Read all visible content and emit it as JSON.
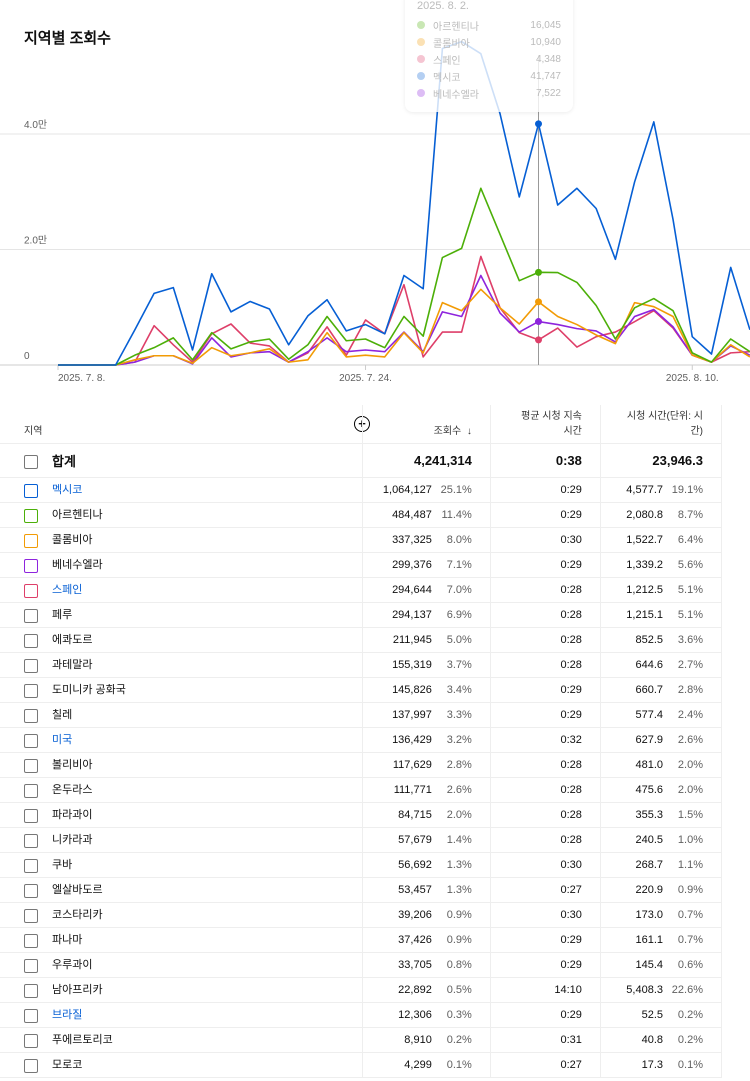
{
  "chart_data": {
    "type": "line",
    "title": "지역별 조회수",
    "x": [
      "2025-07-08",
      "2025-07-09",
      "2025-07-10",
      "2025-07-11",
      "2025-07-12",
      "2025-07-13",
      "2025-07-14",
      "2025-07-15",
      "2025-07-16",
      "2025-07-17",
      "2025-07-18",
      "2025-07-19",
      "2025-07-20",
      "2025-07-21",
      "2025-07-22",
      "2025-07-23",
      "2025-07-24",
      "2025-07-25",
      "2025-07-26",
      "2025-07-27",
      "2025-07-28",
      "2025-07-29",
      "2025-07-30",
      "2025-07-31",
      "2025-08-01",
      "2025-08-02",
      "2025-08-03",
      "2025-08-04",
      "2025-08-05",
      "2025-08-06",
      "2025-08-07",
      "2025-08-08",
      "2025-08-09",
      "2025-08-10",
      "2025-08-11",
      "2025-08-12",
      "2025-08-13"
    ],
    "x_tick_labels": [
      {
        "x": "2025-07-08",
        "label": "2025. 7. 8."
      },
      {
        "x": "2025-07-24",
        "label": "2025. 7. 24."
      },
      {
        "x": "2025-08-10",
        "label": "2025. 8. 10."
      }
    ],
    "y_ticks": [
      {
        "value": 0,
        "label": "0"
      },
      {
        "value": 20000,
        "label": "2.0만"
      },
      {
        "value": 40000,
        "label": "4.0만"
      }
    ],
    "ylim": [
      0,
      63500
    ],
    "grid": true,
    "series": [
      {
        "name": "멕시코",
        "color": "#065fd4",
        "values": [
          0,
          0,
          0,
          0,
          6100,
          12400,
          13400,
          2600,
          15800,
          9200,
          11000,
          9700,
          3500,
          8500,
          11300,
          5900,
          7000,
          5400,
          15500,
          13200,
          54800,
          56000,
          53900,
          43500,
          29100,
          41747,
          27700,
          30600,
          27100,
          18300,
          31700,
          42100,
          25200,
          4900,
          1900,
          16900,
          6100
        ]
      },
      {
        "name": "아르헨티나",
        "color": "#4caf08",
        "values": [
          0,
          0,
          0,
          0,
          1700,
          3000,
          4700,
          900,
          5600,
          2800,
          4000,
          4500,
          1000,
          3500,
          8400,
          4200,
          4500,
          3000,
          8400,
          5000,
          18600,
          20200,
          30600,
          22600,
          14600,
          16045,
          16000,
          14300,
          10300,
          4500,
          9900,
          11500,
          9400,
          2100,
          500,
          4500,
          2300
        ]
      },
      {
        "name": "콜롬비아",
        "color": "#f29b05",
        "values": [
          0,
          0,
          0,
          0,
          900,
          1600,
          1600,
          300,
          3000,
          1600,
          2100,
          2800,
          500,
          900,
          5600,
          1400,
          1700,
          1400,
          5600,
          2100,
          10800,
          9400,
          13100,
          9900,
          7100,
          10940,
          8400,
          7000,
          5200,
          3700,
          10800,
          10100,
          8400,
          1700,
          500,
          3500,
          1400
        ]
      },
      {
        "name": "베네수엘라",
        "color": "#8e24dd",
        "values": [
          0,
          0,
          0,
          0,
          500,
          1600,
          1600,
          200,
          4700,
          1400,
          2100,
          2300,
          500,
          2300,
          4700,
          2300,
          2600,
          2300,
          5700,
          2300,
          9200,
          8400,
          15500,
          9000,
          5700,
          7522,
          7000,
          6300,
          5900,
          4000,
          8400,
          9600,
          6600,
          1700,
          500,
          3300,
          1700
        ]
      },
      {
        "name": "스페인",
        "color": "#de3f69",
        "values": [
          0,
          0,
          0,
          0,
          500,
          6800,
          3500,
          500,
          5400,
          7100,
          3800,
          3300,
          500,
          2100,
          6600,
          1700,
          7800,
          5400,
          13900,
          1400,
          5700,
          5700,
          18800,
          9900,
          5600,
          4348,
          6400,
          3100,
          4900,
          5700,
          7500,
          9400,
          6400,
          1700,
          500,
          2100,
          2300
        ]
      }
    ],
    "hover": {
      "date_label": "2025. 8. 2.",
      "rows": [
        {
          "name": "아르헨티나",
          "value": "16,045",
          "color": "#4caf08"
        },
        {
          "name": "콜롬비아",
          "value": "10,940",
          "color": "#f29b05"
        },
        {
          "name": "스페인",
          "value": "4,348",
          "color": "#de3f69"
        },
        {
          "name": "멕시코",
          "value": "41,747",
          "color": "#065fd4"
        },
        {
          "name": "베네수엘라",
          "value": "7,522",
          "color": "#8e24dd"
        }
      ]
    }
  },
  "table": {
    "headers": {
      "region": "지역",
      "views": "조회수",
      "avg_duration_1": "평균 시청 지속",
      "avg_duration_2": "시간",
      "watch_time_1": "시청 시간(단위: 시",
      "watch_time_2": "간)"
    },
    "sort_icon": "arrow-down-icon",
    "add_icon": "plus-circle-icon",
    "total": {
      "label": "합계",
      "views": "4,241,314",
      "avg": "0:38",
      "watch": "23,946.3"
    },
    "rows": [
      {
        "region": "멕시코",
        "views": "1,064,127",
        "vp": "25.1%",
        "avg": "0:29",
        "watch": "4,577.7",
        "wp": "19.1%",
        "color": "#065fd4",
        "link": true
      },
      {
        "region": "아르헨티나",
        "views": "484,487",
        "vp": "11.4%",
        "avg": "0:29",
        "watch": "2,080.8",
        "wp": "8.7%",
        "color": "#4caf08"
      },
      {
        "region": "콜롬비아",
        "views": "337,325",
        "vp": "8.0%",
        "avg": "0:30",
        "watch": "1,522.7",
        "wp": "6.4%",
        "color": "#f29b05"
      },
      {
        "region": "베네수엘라",
        "views": "299,376",
        "vp": "7.1%",
        "avg": "0:29",
        "watch": "1,339.2",
        "wp": "5.6%",
        "color": "#8e24dd"
      },
      {
        "region": "스페인",
        "views": "294,644",
        "vp": "7.0%",
        "avg": "0:28",
        "watch": "1,212.5",
        "wp": "5.1%",
        "color": "#de3f69",
        "link": true
      },
      {
        "region": "페루",
        "views": "294,137",
        "vp": "6.9%",
        "avg": "0:28",
        "watch": "1,215.1",
        "wp": "5.1%"
      },
      {
        "region": "에콰도르",
        "views": "211,945",
        "vp": "5.0%",
        "avg": "0:28",
        "watch": "852.5",
        "wp": "3.6%"
      },
      {
        "region": "과테말라",
        "views": "155,319",
        "vp": "3.7%",
        "avg": "0:28",
        "watch": "644.6",
        "wp": "2.7%"
      },
      {
        "region": "도미니카 공화국",
        "views": "145,826",
        "vp": "3.4%",
        "avg": "0:29",
        "watch": "660.7",
        "wp": "2.8%"
      },
      {
        "region": "칠레",
        "views": "137,997",
        "vp": "3.3%",
        "avg": "0:29",
        "watch": "577.4",
        "wp": "2.4%"
      },
      {
        "region": "미국",
        "views": "136,429",
        "vp": "3.2%",
        "avg": "0:32",
        "watch": "627.9",
        "wp": "2.6%",
        "link": true
      },
      {
        "region": "볼리비아",
        "views": "117,629",
        "vp": "2.8%",
        "avg": "0:28",
        "watch": "481.0",
        "wp": "2.0%"
      },
      {
        "region": "온두라스",
        "views": "111,771",
        "vp": "2.6%",
        "avg": "0:28",
        "watch": "475.6",
        "wp": "2.0%"
      },
      {
        "region": "파라과이",
        "views": "84,715",
        "vp": "2.0%",
        "avg": "0:28",
        "watch": "355.3",
        "wp": "1.5%"
      },
      {
        "region": "니카라과",
        "views": "57,679",
        "vp": "1.4%",
        "avg": "0:28",
        "watch": "240.5",
        "wp": "1.0%"
      },
      {
        "region": "쿠바",
        "views": "56,692",
        "vp": "1.3%",
        "avg": "0:30",
        "watch": "268.7",
        "wp": "1.1%"
      },
      {
        "region": "엘살바도르",
        "views": "53,457",
        "vp": "1.3%",
        "avg": "0:27",
        "watch": "220.9",
        "wp": "0.9%"
      },
      {
        "region": "코스타리카",
        "views": "39,206",
        "vp": "0.9%",
        "avg": "0:30",
        "watch": "173.0",
        "wp": "0.7%"
      },
      {
        "region": "파나마",
        "views": "37,426",
        "vp": "0.9%",
        "avg": "0:29",
        "watch": "161.1",
        "wp": "0.7%"
      },
      {
        "region": "우루과이",
        "views": "33,705",
        "vp": "0.8%",
        "avg": "0:29",
        "watch": "145.4",
        "wp": "0.6%"
      },
      {
        "region": "남아프리카",
        "views": "22,892",
        "vp": "0.5%",
        "avg": "14:10",
        "watch": "5,408.3",
        "wp": "22.6%"
      },
      {
        "region": "브라질",
        "views": "12,306",
        "vp": "0.3%",
        "avg": "0:29",
        "watch": "52.5",
        "wp": "0.2%",
        "link": true
      },
      {
        "region": "푸에르토리코",
        "views": "8,910",
        "vp": "0.2%",
        "avg": "0:31",
        "watch": "40.8",
        "wp": "0.2%"
      },
      {
        "region": "모로코",
        "views": "4,299",
        "vp": "0.1%",
        "avg": "0:27",
        "watch": "17.3",
        "wp": "0.1%"
      }
    ]
  }
}
